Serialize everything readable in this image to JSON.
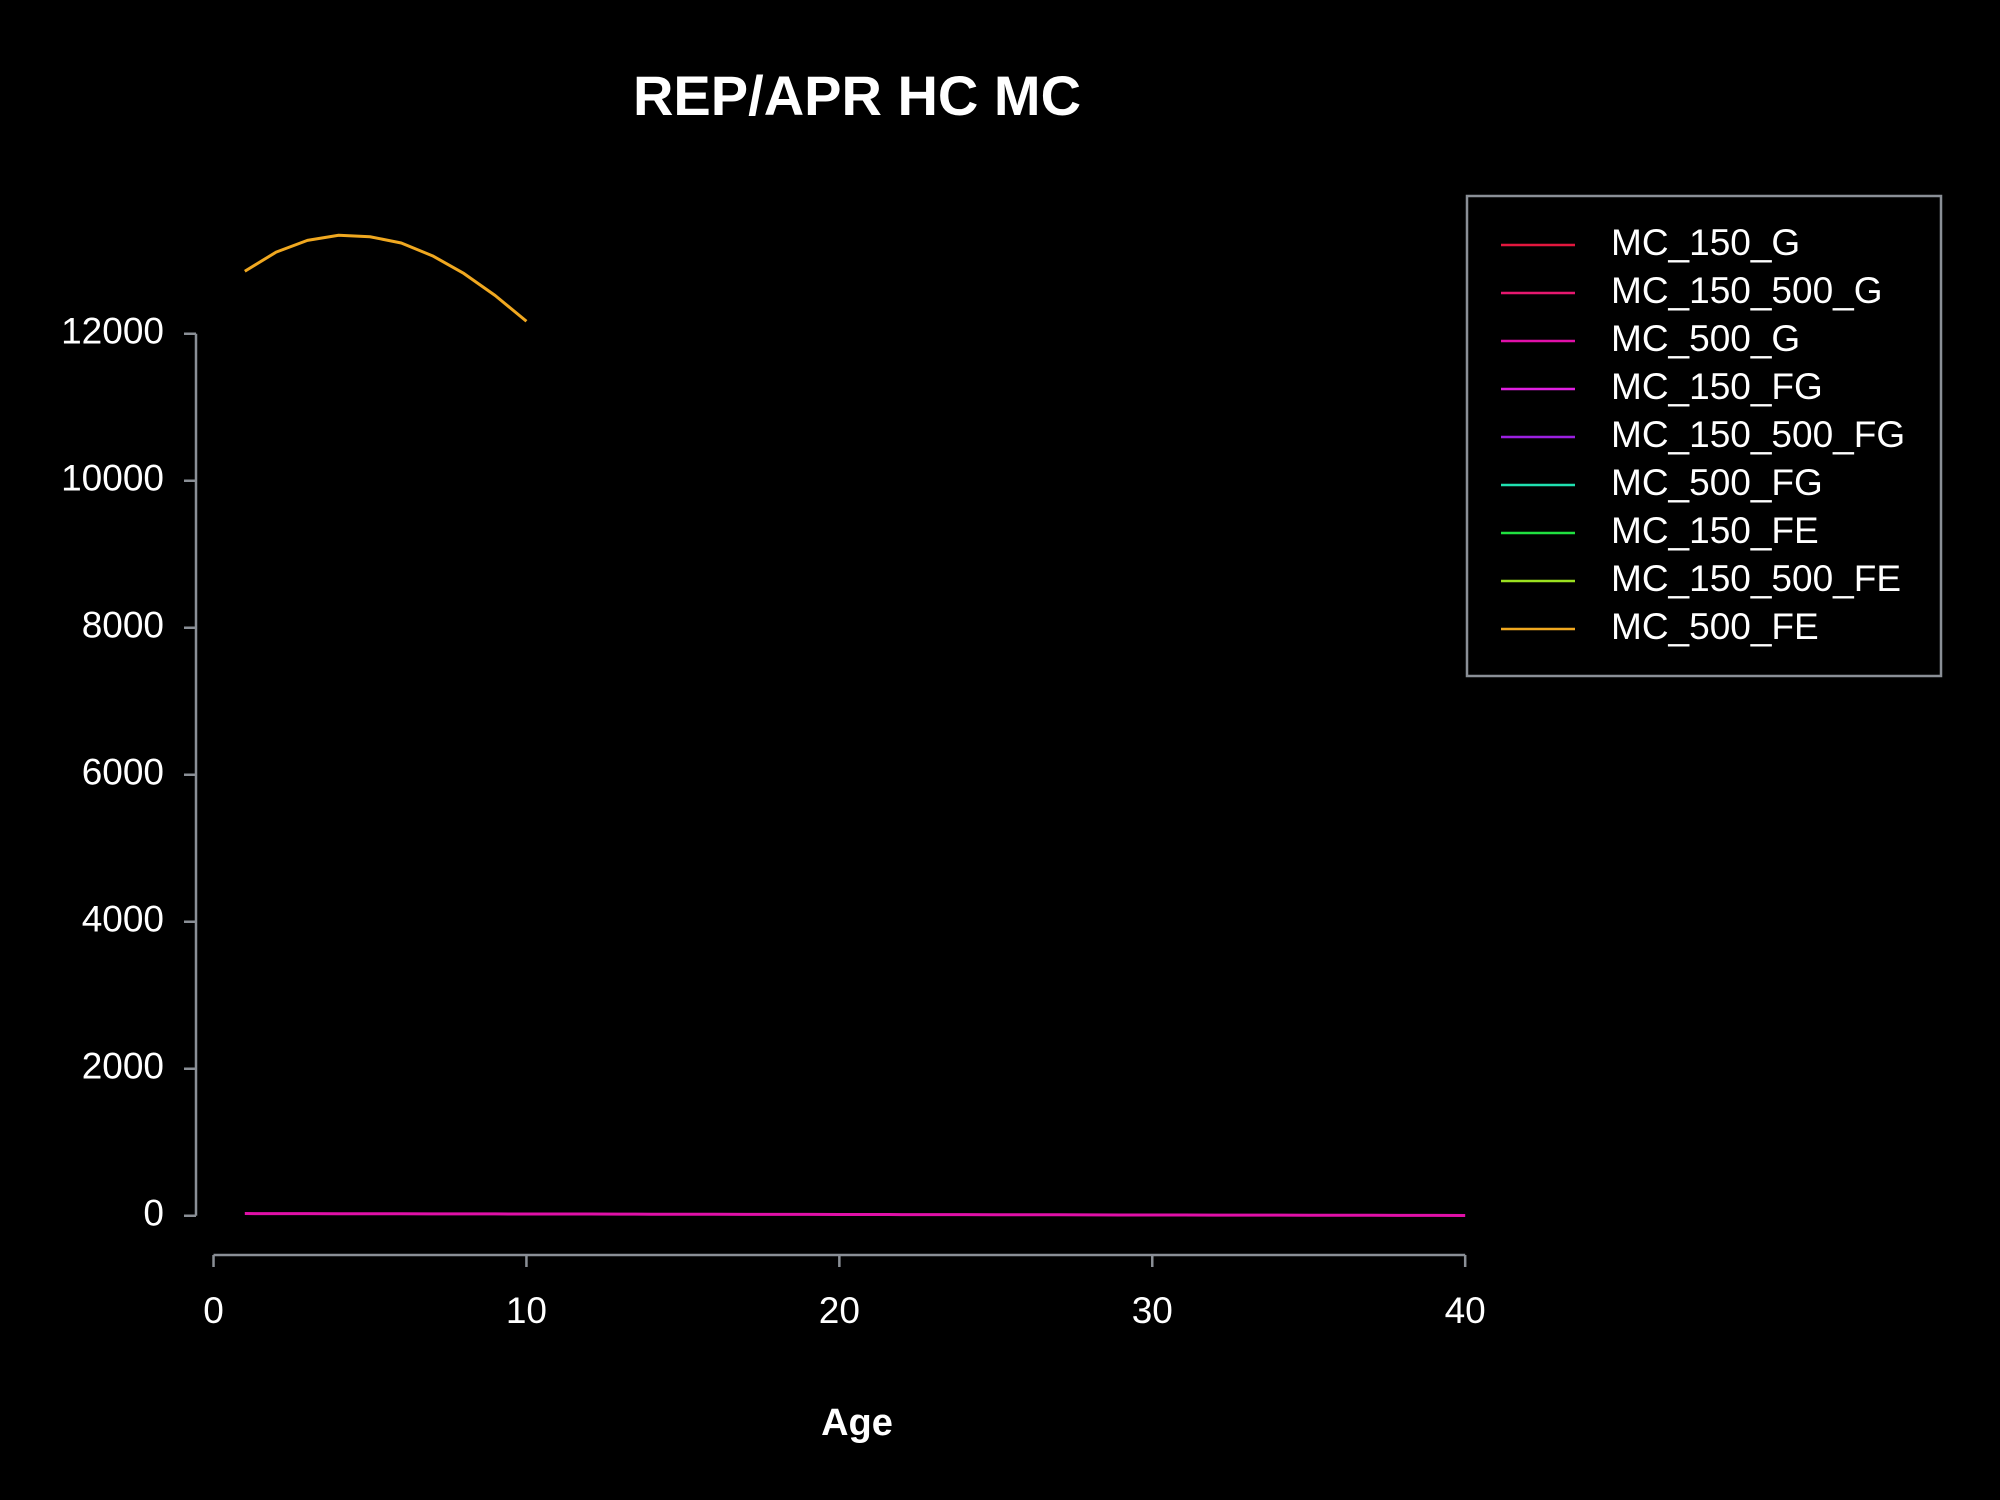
{
  "chart_data": {
    "type": "line",
    "title": "REP/APR HC  MC",
    "x_label": "Age",
    "x": [
      1,
      2,
      3,
      4,
      5,
      6,
      7,
      8,
      9,
      10,
      11,
      12,
      13,
      14,
      15,
      16,
      17,
      18,
      19,
      20,
      21,
      22,
      23,
      24,
      25,
      26,
      27,
      28,
      29,
      30,
      31,
      32,
      33,
      34,
      35,
      36,
      37,
      38,
      39,
      40
    ],
    "xlim": [
      -0.56,
      41.56
    ],
    "xticks": [
      0,
      10,
      20,
      30,
      40
    ],
    "ylim": [
      -534,
      13874
    ],
    "yticks": [
      0,
      2000,
      4000,
      6000,
      8000,
      10000,
      12000
    ],
    "series": [
      {
        "name": "MC_150_G",
        "color": "#e3173e",
        "values": [
          null,
          null,
          null,
          null,
          null,
          null,
          null,
          null,
          null,
          null,
          null,
          null,
          null,
          null,
          null,
          null,
          null,
          null,
          null,
          null,
          null,
          null,
          null,
          null,
          null,
          null,
          null,
          null,
          null,
          null,
          null,
          null,
          null,
          null,
          null,
          null,
          null,
          null,
          null,
          null
        ]
      },
      {
        "name": "MC_150_500_G",
        "color": "#e6186f",
        "values": [
          null,
          null,
          null,
          null,
          null,
          null,
          null,
          null,
          null,
          null,
          null,
          null,
          null,
          null,
          null,
          null,
          null,
          null,
          null,
          null,
          null,
          null,
          null,
          null,
          null,
          null,
          null,
          null,
          null,
          null,
          null,
          null,
          null,
          null,
          null,
          null,
          null,
          null,
          null,
          null
        ]
      },
      {
        "name": "MC_500_G",
        "color": "#e010a8",
        "values": [
          30,
          29,
          29,
          28,
          27,
          27,
          26,
          25,
          25,
          24,
          23,
          23,
          22,
          21,
          21,
          20,
          19,
          19,
          18,
          17,
          17,
          16,
          15,
          15,
          14,
          13,
          13,
          12,
          11,
          11,
          10,
          9,
          9,
          8,
          7,
          7,
          6,
          5,
          5,
          4
        ]
      },
      {
        "name": "MC_150_FG",
        "color": "#e020e0",
        "values": [
          null,
          null,
          null,
          null,
          null,
          null,
          null,
          null,
          null,
          null,
          null,
          null,
          null,
          null,
          null,
          null,
          null,
          null,
          null,
          null,
          null,
          null,
          null,
          null,
          null,
          null,
          null,
          null,
          null,
          null,
          null,
          null,
          null,
          null,
          null,
          null,
          null,
          null,
          null,
          null
        ]
      },
      {
        "name": "MC_150_500_FG",
        "color": "#9b20e0",
        "values": [
          null,
          null,
          null,
          null,
          null,
          null,
          null,
          null,
          null,
          null,
          null,
          null,
          null,
          null,
          null,
          null,
          null,
          null,
          null,
          null,
          null,
          null,
          null,
          null,
          null,
          null,
          null,
          null,
          null,
          null,
          null,
          null,
          null,
          null,
          null,
          null,
          null,
          null,
          null,
          null
        ]
      },
      {
        "name": "MC_500_FG",
        "color": "#20e0b0",
        "values": [
          null,
          null,
          null,
          null,
          null,
          null,
          null,
          null,
          null,
          null,
          null,
          null,
          null,
          null,
          null,
          null,
          null,
          null,
          null,
          null,
          null,
          null,
          null,
          null,
          null,
          null,
          null,
          null,
          null,
          null,
          null,
          null,
          null,
          null,
          null,
          null,
          null,
          null,
          null,
          null
        ]
      },
      {
        "name": "MC_150_FE",
        "color": "#20e040",
        "values": [
          null,
          null,
          null,
          null,
          null,
          null,
          null,
          null,
          null,
          null,
          null,
          null,
          null,
          null,
          null,
          null,
          null,
          null,
          null,
          null,
          null,
          null,
          null,
          null,
          null,
          null,
          null,
          null,
          null,
          null,
          null,
          null,
          null,
          null,
          null,
          null,
          null,
          null,
          null,
          null
        ]
      },
      {
        "name": "MC_150_500_FE",
        "color": "#9be020",
        "values": [
          null,
          null,
          null,
          null,
          null,
          null,
          null,
          null,
          null,
          null,
          null,
          null,
          null,
          null,
          null,
          null,
          null,
          null,
          null,
          null,
          null,
          null,
          null,
          null,
          null,
          null,
          null,
          null,
          null,
          null,
          null,
          null,
          null,
          null,
          null,
          null,
          null,
          null,
          null,
          null
        ]
      },
      {
        "name": "MC_500_FE",
        "color": "#f0a820",
        "values": [
          12850,
          13110,
          13270,
          13340,
          13320,
          13235,
          13060,
          12820,
          12520,
          12170,
          null,
          null,
          null,
          null,
          null,
          null,
          null,
          null,
          null,
          null,
          null,
          null,
          null,
          null,
          null,
          null,
          null,
          null,
          null,
          null,
          null,
          null,
          null,
          null,
          null,
          null,
          null,
          null,
          null,
          null
        ]
      }
    ]
  }
}
